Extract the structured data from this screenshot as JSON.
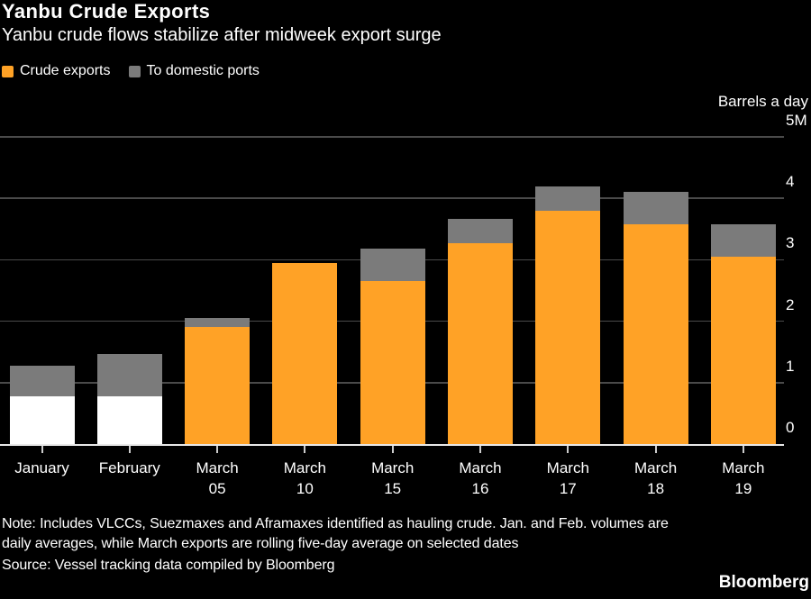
{
  "header": {
    "title": "Yanbu Crude Exports",
    "subtitle": "Yanbu crude flows stabilize after midweek export surge"
  },
  "legend": {
    "items": [
      {
        "label": "Crude exports",
        "color": "#FFA226"
      },
      {
        "label": "To domestic ports",
        "color": "#7B7B7B"
      }
    ]
  },
  "axis": {
    "unit_label": "Barrels a day"
  },
  "chart_data": {
    "type": "bar",
    "stacked": true,
    "title": "Yanbu Crude Exports",
    "subtitle": "Yanbu crude flows stabilize after midweek export surge",
    "xlabel": "",
    "ylabel": "Barrels a day",
    "ylim": [
      0,
      5
    ],
    "grid": true,
    "legend_position": "top-left",
    "y_ticks": [
      {
        "value": 0,
        "label": "0"
      },
      {
        "value": 1,
        "label": "1"
      },
      {
        "value": 2,
        "label": "2"
      },
      {
        "value": 3,
        "label": "3"
      },
      {
        "value": 4,
        "label": "4"
      },
      {
        "value": 5,
        "label": "5M"
      }
    ],
    "categories": [
      "January",
      "February",
      "March 05",
      "March 10",
      "March 15",
      "March 16",
      "March 17",
      "March 18",
      "March 19"
    ],
    "category_label_lines": [
      [
        "January"
      ],
      [
        "February"
      ],
      [
        "March",
        "05"
      ],
      [
        "March",
        "10"
      ],
      [
        "March",
        "15"
      ],
      [
        "March",
        "16"
      ],
      [
        "March",
        "17"
      ],
      [
        "March",
        "18"
      ],
      [
        "March",
        "19"
      ]
    ],
    "series": [
      {
        "name": "Crude exports",
        "values": [
          0.78,
          0.78,
          1.9,
          2.95,
          2.65,
          3.27,
          3.8,
          3.58,
          3.05
        ],
        "default_color": "#FFA226",
        "bar_colors": [
          "#FFFFFF",
          "#FFFFFF",
          "#FFA226",
          "#FFA226",
          "#FFA226",
          "#FFA226",
          "#FFA226",
          "#FFA226",
          "#FFA226"
        ]
      },
      {
        "name": "To domestic ports",
        "values": [
          0.5,
          0.68,
          0.15,
          0,
          0.53,
          0.4,
          0.4,
          0.53,
          0.53
        ],
        "default_color": "#7B7B7B"
      }
    ],
    "palette": {
      "background": "#000000",
      "text": "#FFFFFF",
      "gridline": "#4A4A4A",
      "axis_line": "#E8E8E8",
      "tick_mark": "#CCCCCC"
    }
  },
  "footer": {
    "note_line1": "Note: Includes VLCCs, Suezmaxes and Aframaxes identified as hauling crude. Jan. and Feb. volumes are",
    "note_line2": "daily averages, while March exports are rolling five-day average on selected dates",
    "source": "Source: Vessel tracking data compiled by Bloomberg",
    "logo": "Bloomberg"
  }
}
